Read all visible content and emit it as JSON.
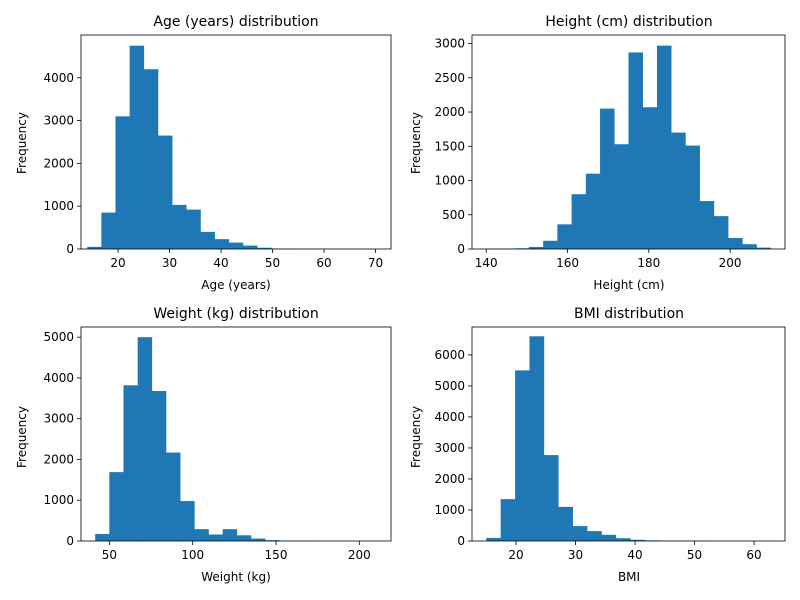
{
  "chart_data": [
    {
      "type": "bar",
      "title": "Age (years) distribution",
      "xlabel": "Age (years)",
      "ylabel": "Frequency",
      "xlim": [
        12.8,
        73.0
      ],
      "ylim": [
        0,
        5000
      ],
      "xticks": [
        20,
        30,
        40,
        50,
        60,
        70
      ],
      "yticks": [
        0,
        1000,
        2000,
        3000,
        4000
      ],
      "bin_start": 14,
      "bin_width": 2.75,
      "values": [
        50,
        850,
        3100,
        4750,
        4200,
        2650,
        1030,
        920,
        400,
        230,
        150,
        80,
        30,
        10,
        5,
        3,
        2,
        1,
        1,
        1
      ]
    },
    {
      "type": "bar",
      "title": "Height (cm) distribution",
      "xlabel": "Height (cm)",
      "ylabel": "Frequency",
      "xlim": [
        136.5,
        213.5
      ],
      "ylim": [
        0,
        3125
      ],
      "xticks": [
        140,
        160,
        180,
        200
      ],
      "yticks": [
        0,
        500,
        1000,
        1500,
        2000,
        2500,
        3000
      ],
      "bin_start": 140,
      "bin_width": 3.5,
      "values": [
        3,
        5,
        10,
        30,
        120,
        360,
        800,
        1100,
        2050,
        1530,
        2870,
        2070,
        2970,
        1700,
        1510,
        700,
        480,
        160,
        70,
        20
      ]
    },
    {
      "type": "bar",
      "title": "Weight (kg) distribution",
      "xlabel": "Weight (kg)",
      "ylabel": "Frequency",
      "xlim": [
        33.0,
        219.0
      ],
      "ylim": [
        0,
        5250
      ],
      "xticks": [
        50,
        100,
        150,
        200
      ],
      "yticks": [
        0,
        1000,
        2000,
        3000,
        4000,
        5000
      ],
      "bin_start": 41.5,
      "bin_width": 8.5,
      "values": [
        170,
        1690,
        3820,
        5000,
        3680,
        2170,
        980,
        290,
        160,
        290,
        140,
        60,
        20,
        10,
        5,
        3,
        2,
        1,
        1,
        1
      ]
    },
    {
      "type": "bar",
      "title": "BMI distribution",
      "xlabel": "BMI",
      "ylabel": "Frequency",
      "xlim": [
        12.6,
        65.2
      ],
      "ylim": [
        0,
        6900
      ],
      "xticks": [
        20,
        30,
        40,
        50,
        60
      ],
      "yticks": [
        0,
        1000,
        2000,
        3000,
        4000,
        5000,
        6000
      ],
      "bin_start": 15,
      "bin_width": 2.42,
      "values": [
        100,
        1350,
        5500,
        6600,
        2770,
        1100,
        480,
        320,
        200,
        90,
        40,
        20,
        10,
        8,
        5,
        3,
        2,
        1,
        1,
        1
      ]
    }
  ]
}
